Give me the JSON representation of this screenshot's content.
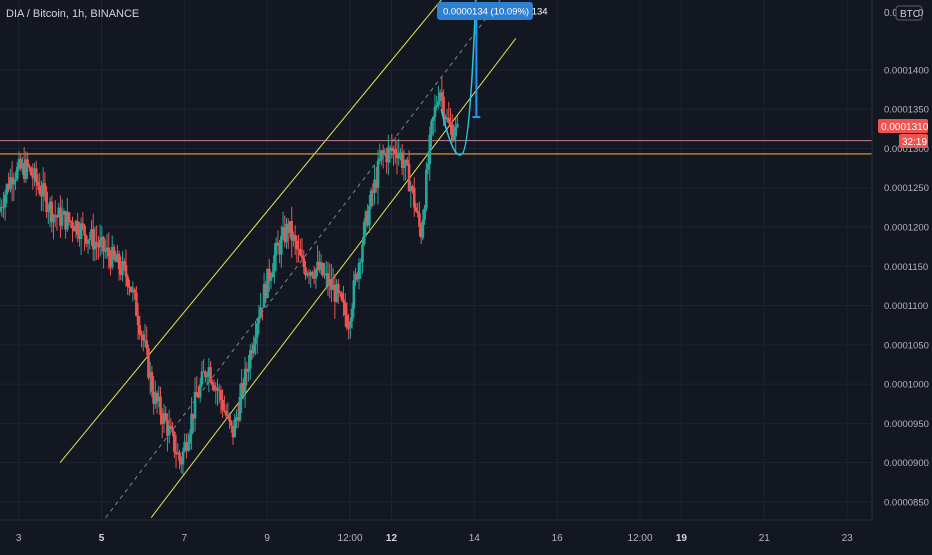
{
  "header": {
    "title": "DIA / Bitcoin, 1h, BINANCE"
  },
  "axis": {
    "currency_badge": "BTC",
    "y_top_partial": "0.0",
    "y_top_partial_tail": "0"
  },
  "measure_label": "0.0000134 (10.09%) 134",
  "price_tag": {
    "value": "0.0001310",
    "countdown": "32:19"
  },
  "colors": {
    "background": "#131722",
    "grid": "#1e2330",
    "text": "#b2b5be",
    "up": "#26a69a",
    "down": "#ef5350",
    "channel": "#e3e64f",
    "hline_orange": "#e6a23c",
    "hline_pink": "#e58ea0",
    "path_cyan": "#26c6da",
    "arrow_blue": "#2196f3",
    "tag_red": "#f05350",
    "label_blue": "#2f7fd1"
  },
  "chart_data": {
    "type": "candlestick",
    "title": "DIA / Bitcoin, 1h, BINANCE",
    "xlabel": "",
    "ylabel": "",
    "x_ticks": [
      "3",
      "5",
      "7",
      "9",
      "12:00",
      "12",
      "14",
      "16",
      "12:00",
      "19",
      "21",
      "23"
    ],
    "y_ticks": [
      "0.0001400",
      "0.0001350",
      "0.0001300",
      "0.0001250",
      "0.0001200",
      "0.0001150",
      "0.0001100",
      "0.0001050",
      "0.0001000",
      "0.0000950",
      "0.0000900",
      "0.0000850"
    ],
    "ylim": [
      8.27e-05,
      0.0001489
    ],
    "xlim": [
      2.55,
      23.6
    ],
    "grid": true,
    "last_price": 0.000131,
    "horizontal_lines": [
      0.000131,
      0.0001293
    ],
    "channel": {
      "upper_line": [
        [
          4.0,
          9e-05
        ],
        [
          14.0,
          0.000154
        ]
      ],
      "lower_line": [
        [
          6.2,
          8.3e-05
        ],
        [
          15.0,
          0.000144
        ]
      ],
      "mid_line": [
        [
          5.1,
          8.3e-05
        ],
        [
          15.0,
          0.0001515
        ]
      ]
    },
    "projection_path": [
      [
        13.2,
        0.000135
      ],
      [
        13.5,
        0.00013
      ],
      [
        13.7,
        0.0001293
      ],
      [
        13.9,
        0.000135
      ],
      [
        14.05,
        0.000151
      ]
    ],
    "measure_arrow": {
      "x": 14.05,
      "from": 0.000134,
      "to": 0.0001474
    },
    "anchors": [
      [
        2.55,
        0.000122
      ],
      [
        2.9,
        0.000127
      ],
      [
        3.25,
        0.0001275
      ],
      [
        3.5,
        0.0001255
      ],
      [
        3.9,
        0.0001215
      ],
      [
        4.4,
        0.0001205
      ],
      [
        4.9,
        0.000118
      ],
      [
        5.3,
        0.000116
      ],
      [
        5.7,
        0.0001135
      ],
      [
        6.0,
        0.000107
      ],
      [
        6.3,
        9.85e-05
      ],
      [
        6.6,
        9.5e-05
      ],
      [
        6.95,
        9e-05
      ],
      [
        7.3,
        9.75e-05
      ],
      [
        7.6,
        0.0001025
      ],
      [
        7.9,
        9.85e-05
      ],
      [
        8.2,
        9.35e-05
      ],
      [
        8.5,
        0.0001005
      ],
      [
        8.8,
        0.0001085
      ],
      [
        9.2,
        0.000116
      ],
      [
        9.55,
        0.00012
      ],
      [
        9.9,
        0.000115
      ],
      [
        10.3,
        0.0001145
      ],
      [
        10.7,
        0.0001115
      ],
      [
        11.0,
        0.000108
      ],
      [
        11.4,
        0.00012
      ],
      [
        11.8,
        0.000129
      ],
      [
        12.2,
        0.00013
      ],
      [
        12.5,
        0.0001255
      ],
      [
        12.75,
        0.000119
      ],
      [
        13.0,
        0.000132
      ],
      [
        13.2,
        0.000138
      ],
      [
        13.4,
        0.000133
      ],
      [
        13.6,
        0.000132
      ]
    ]
  }
}
